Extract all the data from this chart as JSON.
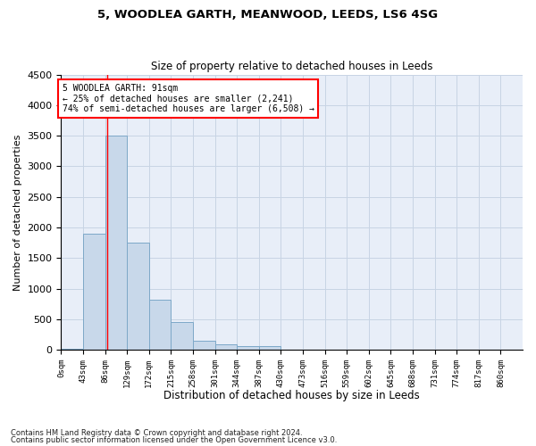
{
  "title1": "5, WOODLEA GARTH, MEANWOOD, LEEDS, LS6 4SG",
  "title2": "Size of property relative to detached houses in Leeds",
  "xlabel": "Distribution of detached houses by size in Leeds",
  "ylabel": "Number of detached properties",
  "bar_labels": [
    "0sqm",
    "43sqm",
    "86sqm",
    "129sqm",
    "172sqm",
    "215sqm",
    "258sqm",
    "301sqm",
    "344sqm",
    "387sqm",
    "430sqm",
    "473sqm",
    "516sqm",
    "559sqm",
    "602sqm",
    "645sqm",
    "688sqm",
    "731sqm",
    "774sqm",
    "817sqm",
    "860sqm"
  ],
  "bar_values": [
    25,
    1900,
    3500,
    1750,
    825,
    450,
    155,
    90,
    65,
    55,
    0,
    0,
    0,
    0,
    0,
    0,
    0,
    0,
    0,
    0,
    0
  ],
  "bar_color": "#c8d8ea",
  "bar_edge_color": "#7da8c8",
  "grid_color": "#c8d4e4",
  "background_color": "#e8eef8",
  "annotation_line1": "5 WOODLEA GARTH: 91sqm",
  "annotation_line2": "← 25% of detached houses are smaller (2,241)",
  "annotation_line3": "74% of semi-detached houses are larger (6,508) →",
  "red_line_x": 91,
  "bin_width": 43,
  "ylim": [
    0,
    4500
  ],
  "footnote1": "Contains HM Land Registry data © Crown copyright and database right 2024.",
  "footnote2": "Contains public sector information licensed under the Open Government Licence v3.0."
}
